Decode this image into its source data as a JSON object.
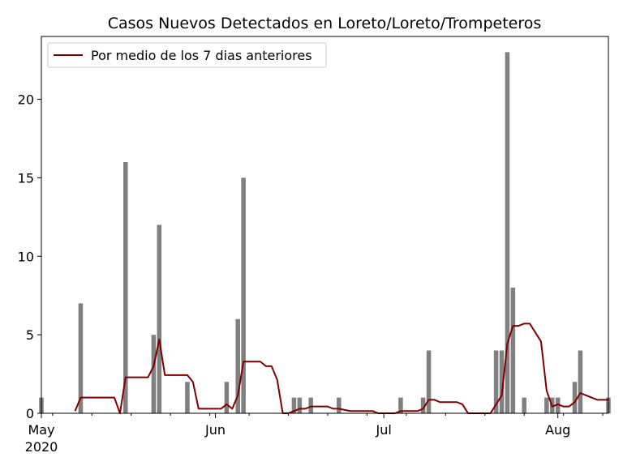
{
  "chart_data": {
    "type": "bar",
    "title": "Casos Nuevos Detectados en Loreto/Loreto/Trompeteros",
    "xlabel": "",
    "ylabel": "",
    "x_range": [
      "2020-05-01",
      "2020-08-10"
    ],
    "ylim": [
      0,
      24
    ],
    "yticks": [
      0,
      5,
      10,
      15,
      20
    ],
    "xticks": [
      {
        "date": "2020-05-01",
        "label": "May",
        "sublabel": "2020"
      },
      {
        "date": "2020-06-01",
        "label": "Jun",
        "sublabel": ""
      },
      {
        "date": "2020-07-01",
        "label": "Jul",
        "sublabel": ""
      },
      {
        "date": "2020-08-01",
        "label": "Aug",
        "sublabel": ""
      }
    ],
    "grid": false,
    "legend": {
      "position": "top-left",
      "entries": [
        "Por medio de los 7 dias anteriores"
      ]
    },
    "bar_color": "#808080",
    "line_color": "#7f0000",
    "bars": [
      {
        "date": "2020-05-01",
        "value": 1
      },
      {
        "date": "2020-05-08",
        "value": 7
      },
      {
        "date": "2020-05-16",
        "value": 16
      },
      {
        "date": "2020-05-21",
        "value": 5
      },
      {
        "date": "2020-05-22",
        "value": 12
      },
      {
        "date": "2020-05-27",
        "value": 2
      },
      {
        "date": "2020-06-03",
        "value": 2
      },
      {
        "date": "2020-06-05",
        "value": 6
      },
      {
        "date": "2020-06-06",
        "value": 15
      },
      {
        "date": "2020-06-15",
        "value": 1
      },
      {
        "date": "2020-06-16",
        "value": 1
      },
      {
        "date": "2020-06-18",
        "value": 1
      },
      {
        "date": "2020-06-23",
        "value": 1
      },
      {
        "date": "2020-07-04",
        "value": 1
      },
      {
        "date": "2020-07-08",
        "value": 1
      },
      {
        "date": "2020-07-09",
        "value": 4
      },
      {
        "date": "2020-07-21",
        "value": 4
      },
      {
        "date": "2020-07-22",
        "value": 4
      },
      {
        "date": "2020-07-23",
        "value": 23
      },
      {
        "date": "2020-07-24",
        "value": 8
      },
      {
        "date": "2020-07-26",
        "value": 1
      },
      {
        "date": "2020-07-30",
        "value": 1
      },
      {
        "date": "2020-07-31",
        "value": 1
      },
      {
        "date": "2020-08-01",
        "value": 1
      },
      {
        "date": "2020-08-04",
        "value": 2
      },
      {
        "date": "2020-08-05",
        "value": 4
      },
      {
        "date": "2020-08-10",
        "value": 1
      }
    ],
    "series": [
      {
        "name": "Por medio de los 7 dias anteriores",
        "points": [
          [
            "2020-05-07",
            0.14
          ],
          [
            "2020-05-08",
            1.0
          ],
          [
            "2020-05-14",
            1.0
          ],
          [
            "2020-05-15",
            0.0
          ],
          [
            "2020-05-16",
            2.29
          ],
          [
            "2020-05-20",
            2.29
          ],
          [
            "2020-05-21",
            3.0
          ],
          [
            "2020-05-22",
            4.71
          ],
          [
            "2020-05-23",
            2.43
          ],
          [
            "2020-05-27",
            2.43
          ],
          [
            "2020-05-28",
            2.0
          ],
          [
            "2020-05-29",
            0.29
          ],
          [
            "2020-06-02",
            0.29
          ],
          [
            "2020-06-03",
            0.57
          ],
          [
            "2020-06-04",
            0.29
          ],
          [
            "2020-06-05",
            1.14
          ],
          [
            "2020-06-06",
            3.29
          ],
          [
            "2020-06-09",
            3.29
          ],
          [
            "2020-06-10",
            3.0
          ],
          [
            "2020-06-11",
            3.0
          ],
          [
            "2020-06-12",
            2.14
          ],
          [
            "2020-06-13",
            0.0
          ],
          [
            "2020-06-14",
            0.0
          ],
          [
            "2020-06-15",
            0.14
          ],
          [
            "2020-06-16",
            0.29
          ],
          [
            "2020-06-17",
            0.29
          ],
          [
            "2020-06-18",
            0.43
          ],
          [
            "2020-06-21",
            0.43
          ],
          [
            "2020-06-22",
            0.29
          ],
          [
            "2020-06-23",
            0.29
          ],
          [
            "2020-06-25",
            0.14
          ],
          [
            "2020-06-29",
            0.14
          ],
          [
            "2020-06-30",
            0.0
          ],
          [
            "2020-07-03",
            0.0
          ],
          [
            "2020-07-04",
            0.14
          ],
          [
            "2020-07-07",
            0.14
          ],
          [
            "2020-07-08",
            0.29
          ],
          [
            "2020-07-09",
            0.86
          ],
          [
            "2020-07-10",
            0.86
          ],
          [
            "2020-07-11",
            0.71
          ],
          [
            "2020-07-14",
            0.71
          ],
          [
            "2020-07-15",
            0.57
          ],
          [
            "2020-07-16",
            0.0
          ],
          [
            "2020-07-20",
            0.0
          ],
          [
            "2020-07-21",
            0.57
          ],
          [
            "2020-07-22",
            1.14
          ],
          [
            "2020-07-23",
            4.43
          ],
          [
            "2020-07-24",
            5.57
          ],
          [
            "2020-07-25",
            5.57
          ],
          [
            "2020-07-26",
            5.71
          ],
          [
            "2020-07-27",
            5.71
          ],
          [
            "2020-07-29",
            4.57
          ],
          [
            "2020-07-30",
            1.43
          ],
          [
            "2020-07-31",
            0.43
          ],
          [
            "2020-08-01",
            0.57
          ],
          [
            "2020-08-02",
            0.43
          ],
          [
            "2020-08-03",
            0.43
          ],
          [
            "2020-08-04",
            0.71
          ],
          [
            "2020-08-05",
            1.29
          ],
          [
            "2020-08-08",
            0.86
          ],
          [
            "2020-08-10",
            0.86
          ]
        ]
      }
    ]
  }
}
